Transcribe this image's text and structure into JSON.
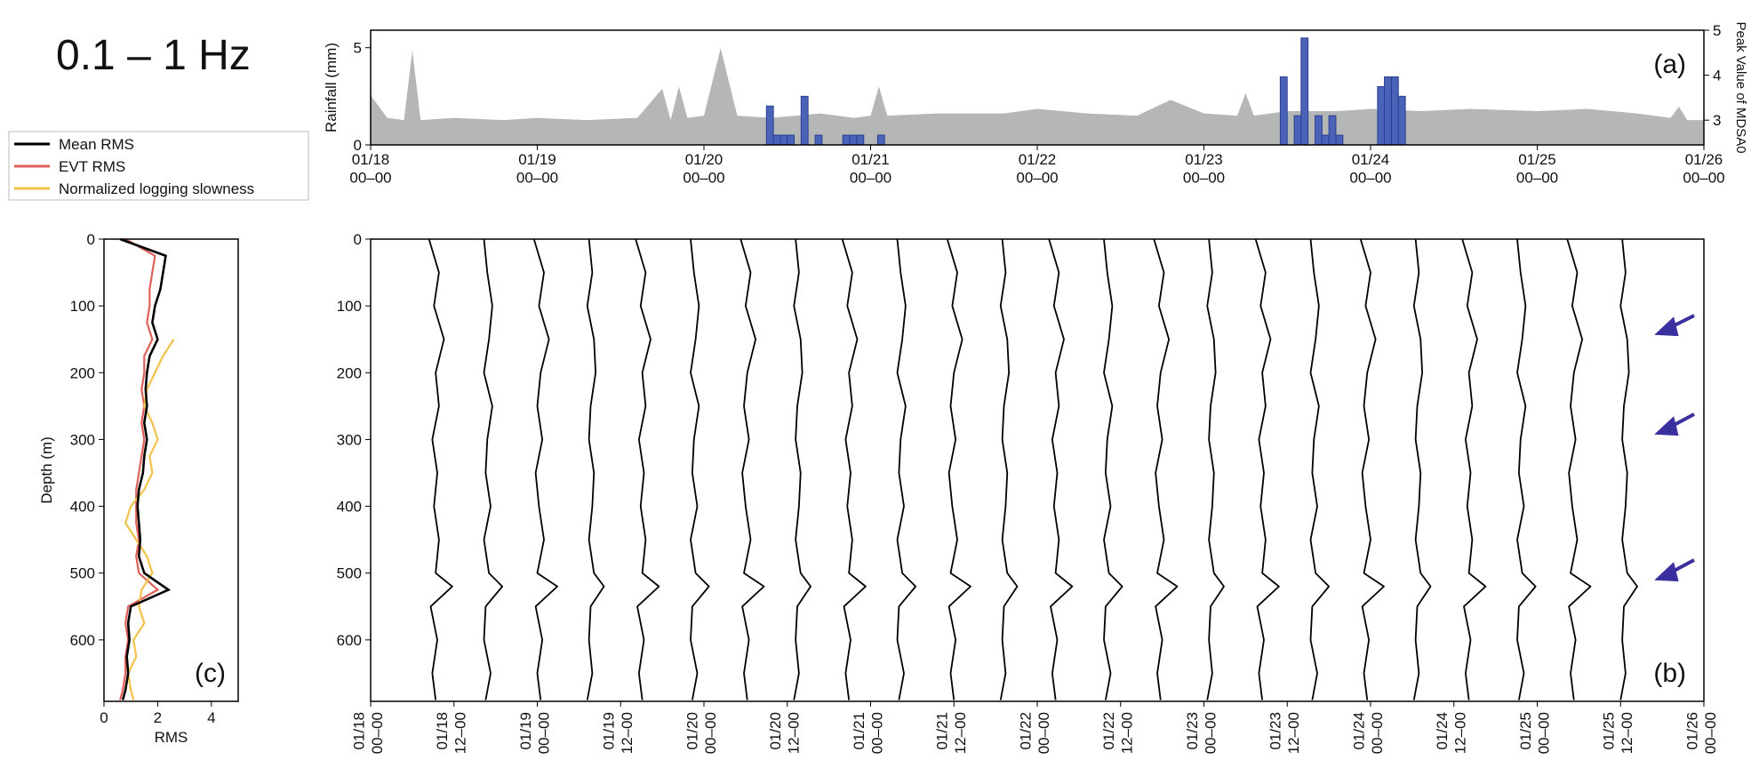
{
  "title": "0.1 – 1 Hz",
  "chart_data": [
    {
      "type": "bar",
      "panel_label": "(a)",
      "ylabel": "Rainfall (mm)",
      "y2label": "Peak Value of MDSA0",
      "xlim": [
        0,
        8
      ],
      "ylim": [
        0,
        5.9
      ],
      "y2lim": [
        2.45,
        5
      ],
      "xticks": [
        {
          "value": 0,
          "label": "01/18 00–00"
        },
        {
          "value": 1,
          "label": "01/19 00–00"
        },
        {
          "value": 2,
          "label": "01/20 00–00"
        },
        {
          "value": 3,
          "label": "01/21 00–00"
        },
        {
          "value": 4,
          "label": "01/22 00–00"
        },
        {
          "value": 5,
          "label": "01/23 00–00"
        },
        {
          "value": 6,
          "label": "01/24 00–00"
        },
        {
          "value": 7,
          "label": "01/25 00–00"
        },
        {
          "value": 8,
          "label": "01/26 00–00"
        }
      ],
      "yticks": [
        0,
        5
      ],
      "y2ticks": [
        3,
        4,
        5
      ],
      "series": [
        {
          "type": "area",
          "axis": "y2",
          "color": "#b5b7b7",
          "x": [
            0,
            0.1,
            0.2,
            0.25,
            0.3,
            0.5,
            0.8,
            1.0,
            1.3,
            1.6,
            1.75,
            1.8,
            1.85,
            1.9,
            2.0,
            2.1,
            2.2,
            2.4,
            2.7,
            2.9,
            3.0,
            3.05,
            3.1,
            3.4,
            3.8,
            4.0,
            4.3,
            4.6,
            4.8,
            5.0,
            5.2,
            5.25,
            5.3,
            5.5,
            5.8,
            6.0,
            6.3,
            6.6,
            7.0,
            7.3,
            7.6,
            7.8,
            7.85,
            7.9,
            8.0
          ],
          "values": [
            3.55,
            3.05,
            3.0,
            4.55,
            3.0,
            3.05,
            3.0,
            3.05,
            3.0,
            3.05,
            3.7,
            3.0,
            3.75,
            3.05,
            3.1,
            4.6,
            3.1,
            3.05,
            3.15,
            3.05,
            3.1,
            3.75,
            3.1,
            3.15,
            3.15,
            3.25,
            3.15,
            3.1,
            3.45,
            3.15,
            3.1,
            3.6,
            3.1,
            3.2,
            3.2,
            3.25,
            3.2,
            3.25,
            3.2,
            3.25,
            3.15,
            3.05,
            3.3,
            3.0,
            3.0
          ]
        },
        {
          "type": "bar",
          "color": "#4a63b8",
          "x": [
            2.375,
            2.417,
            2.458,
            2.5,
            2.583,
            2.667,
            2.833,
            2.875,
            2.917,
            3.042,
            5.458,
            5.542,
            5.583,
            5.667,
            5.708,
            5.75,
            5.792,
            6.042,
            6.083,
            6.125,
            6.167
          ],
          "values": [
            2.0,
            0.5,
            0.5,
            0.5,
            2.5,
            0.5,
            0.5,
            0.5,
            0.5,
            0.5,
            3.5,
            1.5,
            5.5,
            1.5,
            0.5,
            1.5,
            0.5,
            3.0,
            3.5,
            3.5,
            2.5
          ]
        }
      ]
    },
    {
      "type": "wiggle",
      "panel_label": "(b)",
      "color": "#000000",
      "xlim": [
        0,
        8
      ],
      "ylim": [
        692,
        0
      ],
      "xticks": [
        {
          "value": 0,
          "label": "01/18 00–00"
        },
        {
          "value": 0.5,
          "label": "01/18 12–00"
        },
        {
          "value": 1,
          "label": "01/19 00–00"
        },
        {
          "value": 1.5,
          "label": "01/19 12–00"
        },
        {
          "value": 2,
          "label": "01/20 00–00"
        },
        {
          "value": 2.5,
          "label": "01/20 12–00"
        },
        {
          "value": 3,
          "label": "01/21 00–00"
        },
        {
          "value": 3.5,
          "label": "01/21 12–00"
        },
        {
          "value": 4,
          "label": "01/22 00–00"
        },
        {
          "value": 4.5,
          "label": "01/22 12–00"
        },
        {
          "value": 5,
          "label": "01/23 00–00"
        },
        {
          "value": 5.5,
          "label": "01/23 12–00"
        },
        {
          "value": 6,
          "label": "01/24 00–00"
        },
        {
          "value": 6.5,
          "label": "01/24 12–00"
        },
        {
          "value": 7,
          "label": "01/25 00–00"
        },
        {
          "value": 7.5,
          "label": "01/25 12–00"
        },
        {
          "value": 8,
          "label": "01/26 00–00"
        }
      ],
      "yticks": [
        0,
        100,
        200,
        300,
        400,
        500,
        600
      ],
      "depths": [
        0,
        50,
        100,
        150,
        200,
        250,
        300,
        350,
        400,
        450,
        500,
        520,
        550,
        600,
        650,
        690
      ],
      "traces": [
        {
          "time": 0.35,
          "offsets": [
            0.0,
            0.06,
            0.03,
            0.09,
            0.04,
            0.06,
            0.02,
            0.05,
            0.03,
            0.06,
            0.04,
            0.14,
            0.01,
            0.05,
            0.02,
            0.04
          ]
        },
        {
          "time": 0.66,
          "offsets": [
            0.02,
            0.04,
            0.07,
            0.05,
            0.02,
            0.07,
            0.04,
            0.03,
            0.06,
            0.02,
            0.05,
            0.13,
            0.03,
            0.02,
            0.06,
            0.03
          ]
        },
        {
          "time": 0.97,
          "offsets": [
            0.01,
            0.07,
            0.04,
            0.1,
            0.05,
            0.03,
            0.06,
            0.02,
            0.04,
            0.07,
            0.03,
            0.15,
            0.02,
            0.06,
            0.03,
            0.05
          ]
        },
        {
          "time": 1.28,
          "offsets": [
            0.03,
            0.05,
            0.02,
            0.06,
            0.07,
            0.04,
            0.03,
            0.06,
            0.05,
            0.03,
            0.06,
            0.12,
            0.04,
            0.03,
            0.05,
            0.02
          ]
        },
        {
          "time": 1.59,
          "offsets": [
            0.0,
            0.06,
            0.03,
            0.09,
            0.04,
            0.06,
            0.02,
            0.05,
            0.03,
            0.06,
            0.04,
            0.14,
            0.01,
            0.05,
            0.02,
            0.04
          ]
        },
        {
          "time": 1.9,
          "offsets": [
            0.02,
            0.04,
            0.07,
            0.05,
            0.02,
            0.07,
            0.04,
            0.03,
            0.06,
            0.02,
            0.05,
            0.13,
            0.03,
            0.02,
            0.06,
            0.03
          ]
        },
        {
          "time": 2.21,
          "offsets": [
            0.01,
            0.07,
            0.04,
            0.1,
            0.05,
            0.03,
            0.06,
            0.02,
            0.04,
            0.07,
            0.03,
            0.15,
            0.02,
            0.06,
            0.03,
            0.05
          ]
        },
        {
          "time": 2.52,
          "offsets": [
            0.03,
            0.05,
            0.02,
            0.06,
            0.07,
            0.04,
            0.03,
            0.06,
            0.05,
            0.03,
            0.06,
            0.12,
            0.04,
            0.03,
            0.05,
            0.02
          ]
        },
        {
          "time": 2.83,
          "offsets": [
            0.0,
            0.06,
            0.03,
            0.09,
            0.04,
            0.06,
            0.02,
            0.05,
            0.03,
            0.06,
            0.04,
            0.14,
            0.01,
            0.05,
            0.02,
            0.04
          ]
        },
        {
          "time": 3.14,
          "offsets": [
            0.02,
            0.04,
            0.07,
            0.05,
            0.02,
            0.07,
            0.04,
            0.03,
            0.06,
            0.02,
            0.05,
            0.13,
            0.03,
            0.02,
            0.06,
            0.03
          ]
        },
        {
          "time": 3.45,
          "offsets": [
            0.01,
            0.07,
            0.04,
            0.1,
            0.05,
            0.03,
            0.06,
            0.02,
            0.04,
            0.07,
            0.03,
            0.15,
            0.02,
            0.06,
            0.03,
            0.05
          ]
        },
        {
          "time": 3.76,
          "offsets": [
            0.03,
            0.05,
            0.02,
            0.06,
            0.07,
            0.04,
            0.03,
            0.06,
            0.05,
            0.03,
            0.06,
            0.12,
            0.04,
            0.03,
            0.05,
            0.02
          ]
        },
        {
          "time": 4.07,
          "offsets": [
            0.0,
            0.06,
            0.03,
            0.09,
            0.04,
            0.06,
            0.02,
            0.05,
            0.03,
            0.06,
            0.04,
            0.14,
            0.01,
            0.05,
            0.02,
            0.04
          ]
        },
        {
          "time": 4.38,
          "offsets": [
            0.02,
            0.04,
            0.07,
            0.05,
            0.02,
            0.07,
            0.04,
            0.03,
            0.06,
            0.02,
            0.05,
            0.13,
            0.03,
            0.02,
            0.06,
            0.03
          ]
        },
        {
          "time": 4.69,
          "offsets": [
            0.01,
            0.07,
            0.04,
            0.1,
            0.05,
            0.03,
            0.06,
            0.02,
            0.04,
            0.07,
            0.03,
            0.15,
            0.02,
            0.06,
            0.03,
            0.05
          ]
        },
        {
          "time": 5.0,
          "offsets": [
            0.03,
            0.05,
            0.02,
            0.06,
            0.07,
            0.04,
            0.03,
            0.06,
            0.05,
            0.03,
            0.06,
            0.12,
            0.04,
            0.03,
            0.05,
            0.02
          ]
        },
        {
          "time": 5.31,
          "offsets": [
            0.0,
            0.06,
            0.03,
            0.09,
            0.04,
            0.06,
            0.02,
            0.05,
            0.03,
            0.06,
            0.04,
            0.14,
            0.01,
            0.05,
            0.02,
            0.04
          ]
        },
        {
          "time": 5.62,
          "offsets": [
            0.02,
            0.04,
            0.07,
            0.05,
            0.02,
            0.07,
            0.04,
            0.03,
            0.06,
            0.02,
            0.05,
            0.13,
            0.03,
            0.02,
            0.06,
            0.03
          ]
        },
        {
          "time": 5.93,
          "offsets": [
            0.01,
            0.07,
            0.04,
            0.1,
            0.05,
            0.03,
            0.06,
            0.02,
            0.04,
            0.07,
            0.03,
            0.15,
            0.02,
            0.06,
            0.03,
            0.05
          ]
        },
        {
          "time": 6.24,
          "offsets": [
            0.03,
            0.05,
            0.02,
            0.06,
            0.07,
            0.04,
            0.03,
            0.06,
            0.05,
            0.03,
            0.06,
            0.12,
            0.04,
            0.03,
            0.05,
            0.02
          ]
        },
        {
          "time": 6.55,
          "offsets": [
            0.0,
            0.06,
            0.03,
            0.09,
            0.04,
            0.06,
            0.02,
            0.05,
            0.03,
            0.06,
            0.04,
            0.14,
            0.01,
            0.05,
            0.02,
            0.04
          ]
        },
        {
          "time": 6.86,
          "offsets": [
            0.02,
            0.04,
            0.07,
            0.05,
            0.02,
            0.07,
            0.04,
            0.03,
            0.06,
            0.02,
            0.05,
            0.13,
            0.03,
            0.02,
            0.06,
            0.03
          ]
        },
        {
          "time": 7.17,
          "offsets": [
            0.01,
            0.07,
            0.04,
            0.1,
            0.05,
            0.03,
            0.06,
            0.02,
            0.04,
            0.07,
            0.03,
            0.15,
            0.02,
            0.06,
            0.03,
            0.05
          ]
        },
        {
          "time": 7.48,
          "offsets": [
            0.03,
            0.05,
            0.02,
            0.06,
            0.07,
            0.04,
            0.03,
            0.06,
            0.05,
            0.03,
            0.06,
            0.12,
            0.04,
            0.03,
            0.05,
            0.02
          ]
        }
      ]
    },
    {
      "type": "line",
      "panel_label": "(c)",
      "xlabel": "RMS",
      "ylabel": "Depth (m)",
      "xlim": [
        0,
        5
      ],
      "ylim": [
        692,
        0
      ],
      "xticks": [
        0,
        2,
        4
      ],
      "yticks": [
        0,
        100,
        200,
        300,
        400,
        500,
        600
      ],
      "depths": [
        0,
        25,
        50,
        75,
        100,
        125,
        150,
        175,
        200,
        225,
        250,
        275,
        300,
        325,
        350,
        375,
        400,
        425,
        450,
        475,
        500,
        525,
        550,
        575,
        600,
        625,
        650,
        675,
        690
      ],
      "series": [
        {
          "name": "Mean RMS",
          "color": "#000000",
          "values": [
            0.6,
            2.3,
            2.2,
            2.1,
            1.9,
            1.8,
            2.0,
            1.7,
            1.6,
            1.55,
            1.6,
            1.5,
            1.6,
            1.5,
            1.45,
            1.3,
            1.25,
            1.3,
            1.35,
            1.3,
            1.5,
            2.4,
            1.0,
            0.9,
            0.95,
            0.85,
            0.9,
            0.8,
            0.7
          ]
        },
        {
          "name": "EVT RMS",
          "color": "#e0605a",
          "values": [
            0.8,
            1.9,
            1.8,
            1.7,
            1.7,
            1.6,
            1.8,
            1.5,
            1.5,
            1.4,
            1.5,
            1.4,
            1.5,
            1.4,
            1.3,
            1.2,
            1.2,
            1.2,
            1.3,
            1.2,
            1.3,
            2.0,
            0.9,
            0.8,
            0.9,
            0.8,
            0.8,
            0.7,
            0.6
          ]
        },
        {
          "name": "Normalized logging slowness",
          "color": "#f2c24a",
          "values": [
            null,
            null,
            null,
            null,
            null,
            null,
            2.6,
            2.2,
            1.9,
            1.6,
            1.5,
            1.8,
            2.0,
            1.7,
            1.8,
            1.5,
            1.0,
            0.8,
            1.2,
            1.6,
            1.8,
            1.4,
            1.3,
            1.5,
            1.1,
            1.2,
            0.9,
            1.0,
            1.1
          ]
        }
      ]
    }
  ]
}
